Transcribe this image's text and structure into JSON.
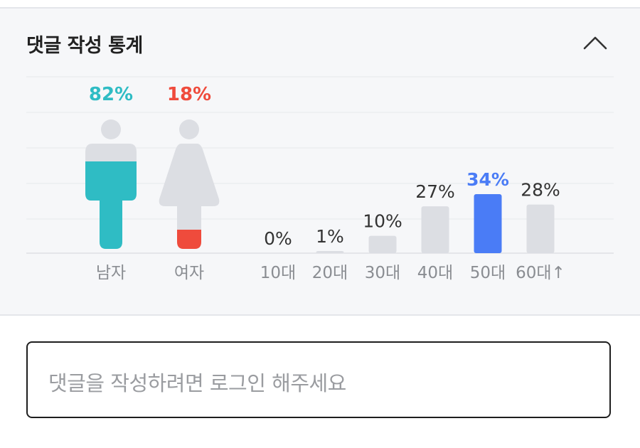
{
  "panel": {
    "title": "댓글 작성 통계",
    "collapse_icon": "chevron-up-icon"
  },
  "chart_data": [
    {
      "type": "bar",
      "categories": [
        "남자",
        "여자"
      ],
      "values": [
        82,
        18
      ],
      "value_labels": [
        "82%",
        "18%"
      ],
      "colors": {
        "남자": "#2fbcc4",
        "여자": "#ef4b3c",
        "inactive": "#dcdee3"
      },
      "ylim": [
        0,
        100
      ],
      "icons": [
        "male-figure-icon",
        "female-figure-icon"
      ]
    },
    {
      "type": "bar",
      "categories": [
        "10대",
        "20대",
        "30대",
        "40대",
        "50대",
        "60대↑"
      ],
      "values": [
        0,
        1,
        10,
        27,
        34,
        28
      ],
      "value_labels": [
        "0%",
        "1%",
        "10%",
        "27%",
        "34%",
        "28%"
      ],
      "highlight": "50대",
      "colors": {
        "highlight": "#4a7cf6",
        "normal": "#dcdee3"
      },
      "ylim": [
        0,
        100
      ],
      "grid": true
    }
  ],
  "comment": {
    "placeholder": "댓글을 작성하려면 로그인 해주세요"
  }
}
